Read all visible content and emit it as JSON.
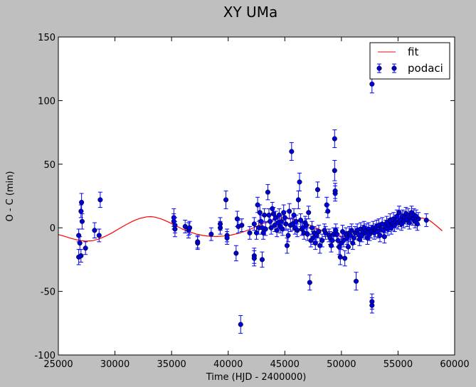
{
  "chart_data": {
    "type": "scatter",
    "title": "XY UMa",
    "xlabel": "Time (HJD - 2400000)",
    "ylabel": "O - C (min)",
    "xlim": [
      25000,
      60000
    ],
    "ylim": [
      -100,
      150
    ],
    "xticks": [
      25000,
      30000,
      35000,
      40000,
      45000,
      50000,
      55000,
      60000
    ],
    "yticks": [
      -100,
      -50,
      0,
      50,
      100,
      150
    ],
    "grid": false,
    "legend_position": "top-right",
    "legend": [
      {
        "label": "fit",
        "kind": "line",
        "color": "#ff0000"
      },
      {
        "label": "podaci",
        "kind": "errorbar",
        "color": "#0000ff"
      }
    ],
    "series": [
      {
        "name": "podaci",
        "kind": "errorbar",
        "color": "#0000cc",
        "err_color": "#0000ff",
        "points": [
          [
            26800,
            -6,
            5
          ],
          [
            26800,
            -23,
            6
          ],
          [
            26900,
            -12,
            5
          ],
          [
            27000,
            -22,
            5
          ],
          [
            27000,
            13,
            5
          ],
          [
            27050,
            20,
            7
          ],
          [
            27100,
            5,
            6
          ],
          [
            27400,
            -16,
            5
          ],
          [
            28200,
            -2,
            6
          ],
          [
            28600,
            -6,
            5
          ],
          [
            28700,
            22,
            6
          ],
          [
            35200,
            8,
            7
          ],
          [
            35200,
            5,
            6
          ],
          [
            35300,
            2,
            6
          ],
          [
            35300,
            -1,
            6
          ],
          [
            36200,
            1,
            5
          ],
          [
            36500,
            -1,
            5
          ],
          [
            36500,
            -2,
            6
          ],
          [
            36600,
            0,
            5
          ],
          [
            37300,
            -12,
            5
          ],
          [
            37300,
            -11,
            5
          ],
          [
            38500,
            -5,
            5
          ],
          [
            39300,
            3,
            5
          ],
          [
            39300,
            0,
            5
          ],
          [
            39800,
            22,
            7
          ],
          [
            39900,
            -6,
            5
          ],
          [
            39900,
            -8,
            5
          ],
          [
            40700,
            -20,
            6
          ],
          [
            40800,
            7,
            6
          ],
          [
            40900,
            1,
            5
          ],
          [
            41200,
            2,
            5
          ],
          [
            41100,
            -76,
            7
          ],
          [
            41900,
            -4,
            5
          ],
          [
            42300,
            -22,
            6
          ],
          [
            42300,
            -24,
            6
          ],
          [
            42300,
            3,
            5
          ],
          [
            42500,
            -4,
            5
          ],
          [
            42600,
            18,
            6
          ],
          [
            42700,
            0,
            5
          ],
          [
            42800,
            12,
            6
          ],
          [
            42900,
            5,
            5
          ],
          [
            43000,
            -25,
            6
          ],
          [
            43000,
            0,
            5
          ],
          [
            43100,
            -4,
            5
          ],
          [
            43200,
            10,
            5
          ],
          [
            43300,
            -1,
            5
          ],
          [
            43500,
            28,
            6
          ],
          [
            43600,
            10,
            5
          ],
          [
            43700,
            5,
            5
          ],
          [
            43800,
            0,
            5
          ],
          [
            43900,
            15,
            5
          ],
          [
            44000,
            11,
            5
          ],
          [
            44100,
            2,
            5
          ],
          [
            44200,
            8,
            5
          ],
          [
            44300,
            -2,
            5
          ],
          [
            44400,
            4,
            5
          ],
          [
            44500,
            10,
            5
          ],
          [
            44600,
            1,
            5
          ],
          [
            44700,
            5,
            5
          ],
          [
            44800,
            -1,
            5
          ],
          [
            44900,
            12,
            6
          ],
          [
            45000,
            8,
            5
          ],
          [
            45100,
            3,
            5
          ],
          [
            45200,
            -14,
            6
          ],
          [
            45300,
            -6,
            5
          ],
          [
            45400,
            13,
            6
          ],
          [
            45500,
            2,
            5
          ],
          [
            45600,
            60,
            7
          ],
          [
            45700,
            3,
            5
          ],
          [
            45800,
            10,
            5
          ],
          [
            45900,
            0,
            5
          ],
          [
            46000,
            5,
            5
          ],
          [
            46100,
            -2,
            5
          ],
          [
            46200,
            22,
            7
          ],
          [
            46300,
            36,
            7
          ],
          [
            46400,
            6,
            5
          ],
          [
            46500,
            -1,
            5
          ],
          [
            46600,
            0,
            5
          ],
          [
            46700,
            -4,
            5
          ],
          [
            46800,
            4,
            5
          ],
          [
            46900,
            2,
            5
          ],
          [
            47000,
            -5,
            5
          ],
          [
            47100,
            12,
            5
          ],
          [
            47200,
            -43,
            6
          ],
          [
            47300,
            -10,
            5
          ],
          [
            47400,
            0,
            5
          ],
          [
            47500,
            -8,
            5
          ],
          [
            47600,
            -4,
            5
          ],
          [
            47700,
            -12,
            5
          ],
          [
            47800,
            -6,
            5
          ],
          [
            47900,
            30,
            6
          ],
          [
            48000,
            -3,
            5
          ],
          [
            48100,
            -14,
            6
          ],
          [
            48300,
            -10,
            5
          ],
          [
            48500,
            -2,
            5
          ],
          [
            48600,
            -4,
            5
          ],
          [
            48700,
            18,
            6
          ],
          [
            48800,
            13,
            5
          ],
          [
            48900,
            -6,
            5
          ],
          [
            49000,
            -8,
            5
          ],
          [
            49100,
            -14,
            5
          ],
          [
            49200,
            -10,
            5
          ],
          [
            49300,
            -5,
            5
          ],
          [
            49400,
            70,
            7
          ],
          [
            49400,
            45,
            8
          ],
          [
            49450,
            27,
            6
          ],
          [
            49450,
            29,
            6
          ],
          [
            49500,
            -2,
            5
          ],
          [
            49600,
            -5,
            5
          ],
          [
            49700,
            -10,
            5
          ],
          [
            49800,
            -15,
            6
          ],
          [
            49900,
            -23,
            6
          ],
          [
            50000,
            -12,
            5
          ],
          [
            50100,
            -3,
            5
          ],
          [
            50200,
            -10,
            5
          ],
          [
            50300,
            -24,
            6
          ],
          [
            50400,
            -5,
            5
          ],
          [
            50500,
            -8,
            5
          ],
          [
            50600,
            -15,
            5
          ],
          [
            50700,
            -4,
            5
          ],
          [
            50800,
            -6,
            5
          ],
          [
            50900,
            -2,
            5
          ],
          [
            51000,
            -12,
            5
          ],
          [
            51100,
            -8,
            5
          ],
          [
            51200,
            -4,
            5
          ],
          [
            51300,
            -42,
            7
          ],
          [
            51400,
            -2,
            5
          ],
          [
            51500,
            -5,
            5
          ],
          [
            51600,
            -9,
            5
          ],
          [
            51700,
            -1,
            5
          ],
          [
            51800,
            -6,
            5
          ],
          [
            51900,
            -3,
            5
          ],
          [
            52000,
            0,
            5
          ],
          [
            52100,
            -4,
            5
          ],
          [
            52200,
            -2,
            5
          ],
          [
            52300,
            -8,
            5
          ],
          [
            52400,
            -1,
            5
          ],
          [
            52500,
            -5,
            5
          ],
          [
            52600,
            -3,
            5
          ],
          [
            52700,
            113,
            7
          ],
          [
            52700,
            -58,
            6
          ],
          [
            52700,
            -61,
            6
          ],
          [
            52800,
            0,
            5
          ],
          [
            52900,
            -4,
            5
          ],
          [
            53000,
            -2,
            5
          ],
          [
            53100,
            1,
            5
          ],
          [
            53200,
            -3,
            5
          ],
          [
            53300,
            2,
            5
          ],
          [
            53400,
            -6,
            5
          ],
          [
            53500,
            -1,
            5
          ],
          [
            53600,
            3,
            5
          ],
          [
            53700,
            -2,
            5
          ],
          [
            53800,
            -7,
            5
          ],
          [
            53900,
            1,
            5
          ],
          [
            54000,
            4,
            5
          ],
          [
            54100,
            -1,
            5
          ],
          [
            54200,
            2,
            5
          ],
          [
            54300,
            6,
            5
          ],
          [
            54400,
            0,
            5
          ],
          [
            54500,
            3,
            5
          ],
          [
            54600,
            7,
            5
          ],
          [
            54700,
            2,
            5
          ],
          [
            54800,
            5,
            5
          ],
          [
            54900,
            9,
            5
          ],
          [
            55000,
            4,
            5
          ],
          [
            55100,
            12,
            5
          ],
          [
            55200,
            6,
            5
          ],
          [
            55300,
            3,
            5
          ],
          [
            55400,
            9,
            5
          ],
          [
            55500,
            5,
            5
          ],
          [
            55600,
            8,
            5
          ],
          [
            55700,
            11,
            5
          ],
          [
            55800,
            6,
            5
          ],
          [
            55900,
            10,
            5
          ],
          [
            56000,
            4,
            5
          ],
          [
            56100,
            8,
            5
          ],
          [
            56200,
            12,
            5
          ],
          [
            56300,
            7,
            5
          ],
          [
            56400,
            10,
            5
          ],
          [
            56500,
            5,
            5
          ],
          [
            56600,
            9,
            5
          ],
          [
            56700,
            3,
            5
          ],
          [
            56800,
            7,
            5
          ],
          [
            57500,
            6,
            5
          ]
        ]
      },
      {
        "name": "fit",
        "kind": "line",
        "color": "#ff0000",
        "points": [
          [
            25000,
            -5.3
          ],
          [
            25600,
            -6.8
          ],
          [
            26200,
            -8.5
          ],
          [
            26800,
            -9.8
          ],
          [
            27400,
            -10.5
          ],
          [
            28000,
            -10.2
          ],
          [
            28600,
            -8.7
          ],
          [
            29200,
            -6.5
          ],
          [
            29800,
            -3.7
          ],
          [
            30400,
            -0.5
          ],
          [
            31000,
            2.6
          ],
          [
            31600,
            5.3
          ],
          [
            32200,
            7.4
          ],
          [
            32800,
            8.6
          ],
          [
            33200,
            8.8
          ],
          [
            33600,
            8.3
          ],
          [
            34200,
            6.6
          ],
          [
            34800,
            4.2
          ],
          [
            35400,
            1.5
          ],
          [
            36000,
            -1.2
          ],
          [
            36600,
            -3.3
          ],
          [
            37200,
            -5.0
          ],
          [
            37800,
            -6.1
          ],
          [
            38400,
            -6.7
          ],
          [
            39000,
            -6.8
          ],
          [
            39600,
            -6.5
          ],
          [
            40200,
            -5.8
          ],
          [
            40800,
            -4.6
          ],
          [
            41400,
            -3.0
          ],
          [
            42000,
            -1.0
          ],
          [
            42600,
            1.5
          ],
          [
            43200,
            3.9
          ],
          [
            43800,
            6.0
          ],
          [
            44400,
            7.4
          ],
          [
            45000,
            7.8
          ],
          [
            45600,
            7.2
          ],
          [
            46200,
            5.8
          ],
          [
            46800,
            3.7
          ],
          [
            47400,
            1.3
          ],
          [
            48000,
            -1.1
          ],
          [
            48600,
            -3.3
          ],
          [
            49200,
            -5.0
          ],
          [
            49800,
            -6.3
          ],
          [
            50400,
            -7.0
          ],
          [
            51000,
            -7.1
          ],
          [
            51600,
            -6.6
          ],
          [
            52200,
            -5.6
          ],
          [
            52800,
            -4.1
          ],
          [
            53400,
            -2.3
          ],
          [
            54000,
            -0.3
          ],
          [
            54600,
            1.9
          ],
          [
            55200,
            4.0
          ],
          [
            55800,
            5.9
          ],
          [
            56400,
            7.3
          ],
          [
            56800,
            7.8
          ],
          [
            57200,
            7.6
          ],
          [
            57800,
            5.7
          ],
          [
            58400,
            1.5
          ],
          [
            58900,
            -2.4
          ]
        ]
      }
    ]
  }
}
